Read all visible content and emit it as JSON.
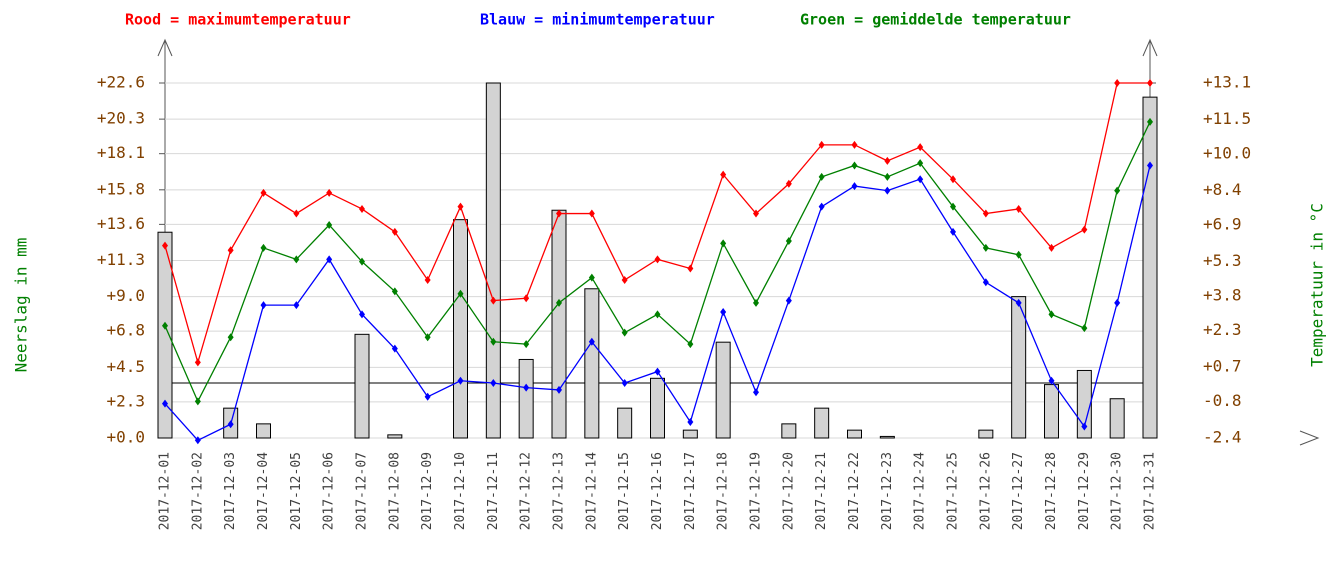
{
  "chart_data": {
    "type": "bar",
    "y_label": "Neerslag in mm",
    "y2_label": "Temperatuur in °C",
    "categories": [
      "2017-12-01",
      "2017-12-02",
      "2017-12-03",
      "2017-12-04",
      "2017-12-05",
      "2017-12-06",
      "2017-12-07",
      "2017-12-08",
      "2017-12-09",
      "2017-12-10",
      "2017-12-11",
      "2017-12-12",
      "2017-12-13",
      "2017-12-14",
      "2017-12-15",
      "2017-12-16",
      "2017-12-17",
      "2017-12-18",
      "2017-12-19",
      "2017-12-20",
      "2017-12-21",
      "2017-12-22",
      "2017-12-23",
      "2017-12-24",
      "2017-12-25",
      "2017-12-26",
      "2017-12-27",
      "2017-12-28",
      "2017-12-29",
      "2017-12-30",
      "2017-12-31"
    ],
    "series": [
      {
        "type": "bar",
        "color": "#d3d3d3",
        "values": [
          13.1,
          0,
          1.9,
          0.9,
          0,
          0,
          6.6,
          0.2,
          0,
          13.9,
          22.6,
          5.0,
          14.5,
          9.5,
          1.9,
          3.8,
          0.5,
          6.1,
          0,
          0.9,
          1.9,
          0.5,
          0.1,
          0,
          0,
          0.5,
          9.0,
          3.4,
          4.3,
          2.5,
          21.7
        ]
      },
      {
        "type": "line",
        "axis": "y2",
        "name": "Rood = maximumtemperatuur",
        "color": "#ff0000",
        "values": [
          6.0,
          0.9,
          5.8,
          8.3,
          7.4,
          8.3,
          7.6,
          6.6,
          4.5,
          7.7,
          3.6,
          3.7,
          7.4,
          7.4,
          4.5,
          5.4,
          5.0,
          9.1,
          7.4,
          8.7,
          10.4,
          10.4,
          9.7,
          10.3,
          8.9,
          7.4,
          7.6,
          5.9,
          6.7,
          13.1,
          13.1
        ]
      },
      {
        "type": "line",
        "axis": "y2",
        "name": "Blauw = minimumtemperatuur",
        "color": "#0000ff",
        "values": [
          -0.9,
          -2.5,
          -1.8,
          3.4,
          3.4,
          5.4,
          3.0,
          1.5,
          -0.6,
          0.1,
          0.0,
          -0.2,
          -0.3,
          1.8,
          0.0,
          0.5,
          -1.7,
          3.1,
          -0.4,
          3.6,
          7.7,
          8.6,
          8.4,
          8.9,
          6.6,
          4.4,
          3.5,
          0.1,
          -1.9,
          3.5,
          9.5
        ]
      },
      {
        "type": "line",
        "axis": "y2",
        "name": "Groen = gemiddelde temperatuur",
        "color": "#008000",
        "values": [
          2.5,
          -0.8,
          2.0,
          5.9,
          5.4,
          6.9,
          5.3,
          4.0,
          2.0,
          3.9,
          1.8,
          1.7,
          3.5,
          4.6,
          2.2,
          3.0,
          1.7,
          6.1,
          3.5,
          6.2,
          9.0,
          9.5,
          9.0,
          9.6,
          7.7,
          5.9,
          5.6,
          3.0,
          2.4,
          8.4,
          11.4
        ]
      }
    ],
    "ylim": [
      0,
      22.6
    ],
    "yticks": [
      {
        "value": 0,
        "label": "+0.0"
      },
      {
        "value": 2.3,
        "label": "+2.3"
      },
      {
        "value": 4.5,
        "label": "+4.5"
      },
      {
        "value": 6.8,
        "label": "+6.8"
      },
      {
        "value": 9.0,
        "label": "+9.0"
      },
      {
        "value": 11.3,
        "label": "+11.3"
      },
      {
        "value": 13.6,
        "label": "+13.6"
      },
      {
        "value": 15.8,
        "label": "+15.8"
      },
      {
        "value": 18.1,
        "label": "+18.1"
      },
      {
        "value": 20.3,
        "label": "+20.3"
      },
      {
        "value": 22.6,
        "label": "+22.6"
      }
    ],
    "y2lim": [
      -2.4,
      13.1
    ],
    "y2ticks": [
      -2.4,
      -0.8,
      {
        "value": 0.7,
        "label": "+0.7"
      },
      {
        "value": 2.3,
        "label": "+2.3"
      },
      {
        "value": 3.8,
        "label": "+3.8"
      },
      {
        "value": 5.3,
        "label": "+5.3"
      },
      {
        "value": 6.9,
        "label": "+6.9"
      },
      {
        "value": 8.4,
        "label": "+8.4"
      },
      {
        "value": 10.0,
        "label": "+10.0"
      },
      {
        "value": 11.5,
        "label": "+11.5"
      },
      {
        "value": 13.1,
        "label": "+13.1"
      }
    ],
    "grid": true
  }
}
